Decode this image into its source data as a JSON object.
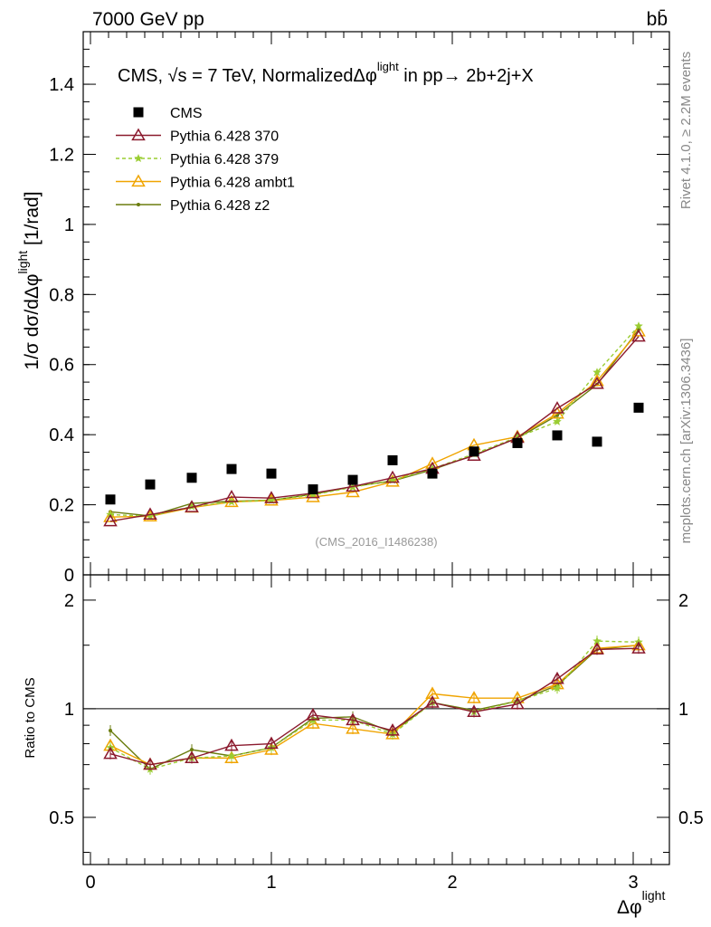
{
  "header": {
    "left": "7000 GeV pp",
    "right": "bb̄"
  },
  "side_labels": {
    "rivet": "Rivet 4.1.0, ≥ 2.2M events",
    "mcplots": "mcplots.cern.ch [arXiv:1306.3436]"
  },
  "watermark": "(CMS_2016_I1486238)",
  "chart_data": {
    "type": "scatter",
    "title": "CMS, √s = 7 TeV, NormalizedΔφ^light in pp→ 2b+2j+X",
    "title_parts": {
      "main": "CMS, √s = 7 TeV, NormalizedΔφ",
      "sup": "light",
      "tail": " in pp→  2b+2j+X"
    },
    "xlabel": "Δφ",
    "xlabel_sup": "light",
    "ylabel": "1/σ dσ/dΔφ^light [1/rad]",
    "ylabel_parts": {
      "main": "1/σ dσ/dΔφ",
      "sup": "light",
      "unit": " [1/rad]"
    },
    "ratio_ylabel": "Ratio to CMS",
    "xlim": [
      -0.04,
      3.2
    ],
    "ylim": [
      0,
      1.55
    ],
    "ratio_ylim": [
      0.37,
      2.35
    ],
    "legend_position": "top-left",
    "x_ticks": [
      0,
      1,
      2,
      3
    ],
    "x_tick_labels": [
      "0",
      "1",
      "2",
      "3"
    ],
    "y_ticks": [
      0,
      0.2,
      0.4,
      0.6,
      0.8,
      1,
      1.2,
      1.4
    ],
    "y_tick_labels": [
      "0",
      "0.2",
      "0.4",
      "0.6",
      "0.8",
      "1",
      "1.2",
      "1.4"
    ],
    "ratio_ticks": [
      0.5,
      1,
      2
    ],
    "ratio_tick_labels": [
      "0.5",
      "1",
      "2"
    ],
    "x": [
      0.11,
      0.33,
      0.56,
      0.78,
      1.0,
      1.23,
      1.45,
      1.67,
      1.89,
      2.12,
      2.36,
      2.58,
      2.8,
      3.03
    ],
    "series": [
      {
        "name": "CMS",
        "color": "#000000",
        "marker": "square",
        "dash": "",
        "values": [
          0.215,
          0.258,
          0.277,
          0.302,
          0.289,
          0.244,
          0.271,
          0.327,
          0.289,
          0.352,
          0.376,
          0.398,
          0.38,
          0.477
        ]
      },
      {
        "name": "Pythia 6.428 370",
        "color": "#8b1a2e",
        "marker": "triangle-open",
        "dash": "",
        "values": [
          0.153,
          0.172,
          0.193,
          0.222,
          0.219,
          0.233,
          0.252,
          0.277,
          0.303,
          0.34,
          0.391,
          0.475,
          0.545,
          0.68
        ],
        "ratio": [
          0.75,
          0.7,
          0.73,
          0.79,
          0.8,
          0.96,
          0.93,
          0.87,
          1.04,
          0.98,
          1.03,
          1.21,
          1.46,
          1.47
        ]
      },
      {
        "name": "Pythia 6.428 379",
        "color": "#9acd32",
        "marker": "star",
        "dash": "4,3",
        "values": [
          0.172,
          0.167,
          0.195,
          0.208,
          0.213,
          0.228,
          0.25,
          0.27,
          0.303,
          0.345,
          0.393,
          0.437,
          0.578,
          0.71
        ],
        "ratio": [
          0.78,
          0.68,
          0.73,
          0.74,
          0.78,
          0.93,
          0.93,
          0.85,
          1.04,
          0.98,
          1.05,
          1.14,
          1.54,
          1.53
        ]
      },
      {
        "name": "Pythia 6.428 ambt1",
        "color": "#f0a400",
        "marker": "triangle-open",
        "dash": "",
        "values": [
          0.165,
          0.167,
          0.192,
          0.208,
          0.212,
          0.222,
          0.236,
          0.266,
          0.317,
          0.37,
          0.394,
          0.46,
          0.553,
          0.695
        ],
        "ratio": [
          0.79,
          0.7,
          0.73,
          0.73,
          0.77,
          0.91,
          0.88,
          0.85,
          1.1,
          1.07,
          1.07,
          1.17,
          1.47,
          1.5
        ]
      },
      {
        "name": "Pythia 6.428 z2",
        "color": "#6b7d0f",
        "marker": "dot",
        "dash": "",
        "values": [
          0.18,
          0.168,
          0.204,
          0.21,
          0.213,
          0.23,
          0.252,
          0.268,
          0.3,
          0.342,
          0.39,
          0.455,
          0.543,
          0.7
        ],
        "ratio": [
          0.87,
          0.68,
          0.77,
          0.74,
          0.78,
          0.94,
          0.95,
          0.86,
          1.04,
          0.99,
          1.05,
          1.16,
          1.46,
          1.5
        ]
      }
    ]
  }
}
